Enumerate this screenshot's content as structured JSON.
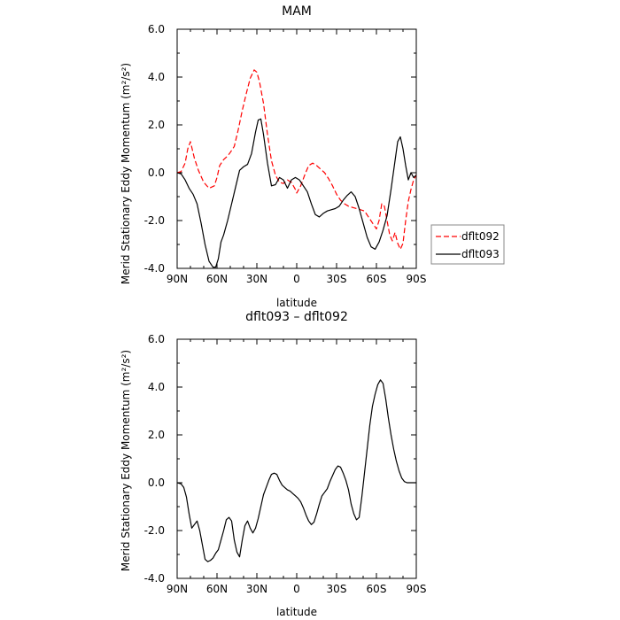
{
  "chart_data": [
    {
      "type": "line",
      "title": "MAM",
      "xlabel": "latitude",
      "ylabel": "Merid Stationary Eddy Momentum (m²/s²)",
      "xlim": [
        90,
        -90
      ],
      "ylim": [
        -4,
        6
      ],
      "x_ticks": [
        "90N",
        "60N",
        "30N",
        "0",
        "30S",
        "60S",
        "90S"
      ],
      "y_ticks": [
        "6.0",
        "4.0",
        "2.0",
        "0.0",
        "-2.0",
        "-4.0"
      ],
      "legend_position": "right",
      "series": [
        {
          "name": "dflt092",
          "color": "#ff0000",
          "dash": "dashed",
          "x": [
            90,
            87,
            84,
            82,
            80,
            77,
            74,
            70,
            66,
            62,
            60,
            58,
            55,
            52,
            50,
            47,
            44,
            41,
            38,
            35,
            32,
            30,
            28,
            25,
            22,
            19,
            16,
            13,
            10,
            7,
            4,
            1,
            0,
            -3,
            -6,
            -9,
            -12,
            -15,
            -18,
            -21,
            -24,
            -27,
            -30,
            -33,
            -36,
            -39,
            -42,
            -45,
            -48,
            -51,
            -54,
            -57,
            -60,
            -62,
            -64,
            -66,
            -68,
            -70,
            -72,
            -74,
            -76,
            -78,
            -80,
            -82,
            -84,
            -86,
            -88,
            -90
          ],
          "y": [
            0,
            0.05,
            0.4,
            1.0,
            1.3,
            0.6,
            0.1,
            -0.4,
            -0.65,
            -0.55,
            -0.2,
            0.3,
            0.55,
            0.7,
            0.85,
            1.1,
            1.8,
            2.6,
            3.3,
            3.95,
            4.3,
            4.2,
            3.8,
            2.9,
            1.6,
            0.5,
            -0.1,
            -0.4,
            -0.45,
            -0.3,
            -0.4,
            -0.7,
            -0.85,
            -0.55,
            -0.1,
            0.3,
            0.4,
            0.3,
            0.15,
            0,
            -0.25,
            -0.55,
            -0.9,
            -1.15,
            -1.3,
            -1.4,
            -1.45,
            -1.5,
            -1.55,
            -1.6,
            -1.85,
            -2.1,
            -2.35,
            -2.0,
            -1.3,
            -1.4,
            -2.0,
            -2.6,
            -2.85,
            -2.5,
            -2.95,
            -3.2,
            -2.95,
            -2.0,
            -1.2,
            -0.7,
            -0.3,
            -0.1
          ]
        },
        {
          "name": "dflt093",
          "color": "#000000",
          "dash": "solid",
          "x": [
            90,
            87,
            84,
            81,
            78,
            75,
            72,
            69,
            66,
            63,
            61,
            59,
            57,
            55,
            52,
            49,
            46,
            43,
            40,
            37,
            34,
            31,
            29,
            27,
            25,
            22,
            19,
            16,
            13,
            10,
            7,
            4,
            1,
            -2,
            -5,
            -8,
            -11,
            -14,
            -17,
            -20,
            -23,
            -26,
            -29,
            -32,
            -35,
            -38,
            -41,
            -44,
            -47,
            -50,
            -53,
            -56,
            -59,
            -62,
            -65,
            -68,
            -71,
            -74,
            -76,
            -78,
            -80,
            -82,
            -84,
            -86,
            -88,
            -90
          ],
          "y": [
            0,
            -0.05,
            -0.3,
            -0.65,
            -0.9,
            -1.3,
            -2.1,
            -3.0,
            -3.7,
            -3.95,
            -3.95,
            -3.6,
            -2.9,
            -2.6,
            -2.0,
            -1.3,
            -0.6,
            0.1,
            0.25,
            0.35,
            0.8,
            1.7,
            2.2,
            2.25,
            1.6,
            0.4,
            -0.55,
            -0.5,
            -0.2,
            -0.3,
            -0.65,
            -0.3,
            -0.2,
            -0.3,
            -0.55,
            -0.8,
            -1.3,
            -1.75,
            -1.85,
            -1.7,
            -1.6,
            -1.55,
            -1.5,
            -1.4,
            -1.15,
            -0.95,
            -0.8,
            -1.0,
            -1.5,
            -2.1,
            -2.7,
            -3.1,
            -3.2,
            -2.9,
            -2.4,
            -1.8,
            -0.7,
            0.5,
            1.3,
            1.5,
            1.0,
            0.3,
            -0.3,
            0.0,
            -0.2,
            -0.1
          ]
        }
      ]
    },
    {
      "type": "line",
      "title": "dflt093 – dflt092",
      "xlabel": "latitude",
      "ylabel": "Merid Stationary Eddy Momentum (m²/s²)",
      "xlim": [
        90,
        -90
      ],
      "ylim": [
        -4,
        6
      ],
      "x_ticks": [
        "90N",
        "60N",
        "30N",
        "0",
        "30S",
        "60S",
        "90S"
      ],
      "y_ticks": [
        "6.0",
        "4.0",
        "2.0",
        "0.0",
        "-2.0",
        "-4.0"
      ],
      "series": [
        {
          "color": "#000000",
          "dash": "solid",
          "x": [
            90,
            87,
            85,
            83,
            81,
            79,
            77,
            75,
            73,
            71,
            69,
            67,
            65,
            63,
            61,
            59,
            57,
            55,
            53,
            51,
            49,
            47,
            45,
            43,
            41,
            39,
            37,
            35,
            33,
            31,
            29,
            27,
            25,
            23,
            21,
            19,
            17,
            15,
            13,
            11,
            9,
            7,
            5,
            3,
            1,
            -1,
            -3,
            -5,
            -7,
            -9,
            -11,
            -13,
            -15,
            -17,
            -19,
            -21,
            -23,
            -25,
            -27,
            -29,
            -31,
            -33,
            -35,
            -37,
            -39,
            -41,
            -43,
            -45,
            -47,
            -49,
            -51,
            -53,
            -55,
            -57,
            -59,
            -61,
            -63,
            -65,
            -67,
            -69,
            -71,
            -73,
            -75,
            -77,
            -79,
            -81,
            -83,
            -85,
            -87,
            -89,
            -90
          ],
          "y": [
            0,
            -0.05,
            -0.2,
            -0.6,
            -1.3,
            -1.9,
            -1.75,
            -1.6,
            -2.0,
            -2.6,
            -3.2,
            -3.3,
            -3.25,
            -3.15,
            -2.95,
            -2.8,
            -2.4,
            -2.0,
            -1.55,
            -1.45,
            -1.6,
            -2.4,
            -2.9,
            -3.1,
            -2.4,
            -1.8,
            -1.6,
            -1.9,
            -2.1,
            -1.9,
            -1.5,
            -1.0,
            -0.5,
            -0.2,
            0.1,
            0.35,
            0.4,
            0.35,
            0.1,
            -0.1,
            -0.2,
            -0.3,
            -0.35,
            -0.45,
            -0.55,
            -0.65,
            -0.8,
            -1.05,
            -1.35,
            -1.6,
            -1.75,
            -1.65,
            -1.3,
            -0.9,
            -0.55,
            -0.4,
            -0.25,
            0.05,
            0.3,
            0.55,
            0.7,
            0.65,
            0.4,
            0.1,
            -0.3,
            -0.9,
            -1.3,
            -1.55,
            -1.45,
            -0.6,
            0.4,
            1.4,
            2.4,
            3.2,
            3.7,
            4.1,
            4.3,
            4.15,
            3.5,
            2.7,
            2.0,
            1.4,
            0.9,
            0.5,
            0.2,
            0.05,
            0,
            0,
            0,
            0,
            0
          ]
        }
      ]
    }
  ]
}
